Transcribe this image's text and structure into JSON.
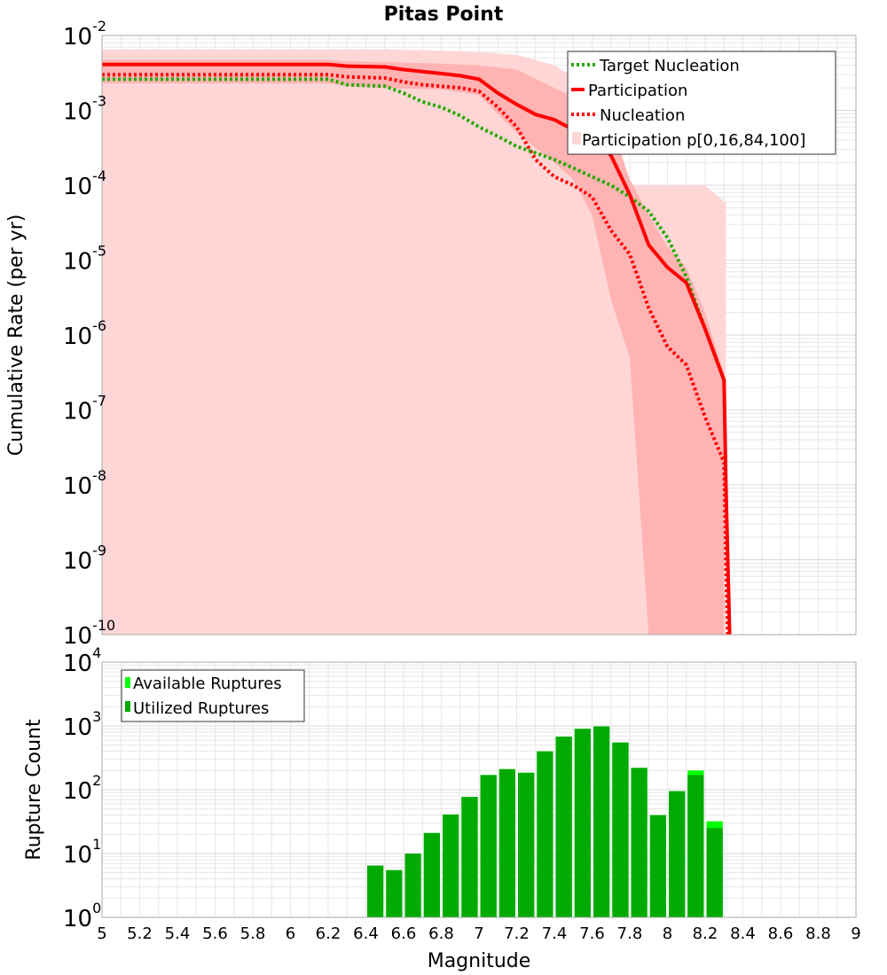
{
  "title": "Pitas Point",
  "colors": {
    "participation": "#ff0000",
    "nucleation": "#ff0000",
    "target": "#22aa00",
    "band_outer": "#ffd6d6",
    "band_inner": "#ffb3b3",
    "bar_available": "#00ff00",
    "bar_utilized": "#00aa00",
    "grid": "#e6e6e6"
  },
  "chart_data": [
    {
      "type": "line",
      "title": "Pitas Point",
      "xlabel": "",
      "ylabel": "Cumulative Rate (per yr)",
      "yscale": "log",
      "xlim": [
        5,
        9
      ],
      "ylim": [
        1e-10,
        0.01
      ],
      "ytick_bases": [
        "10",
        "10",
        "10",
        "10",
        "10",
        "10",
        "10",
        "10",
        "10"
      ],
      "ytick_exps": [
        "-2",
        "-3",
        "-4",
        "-5",
        "-6",
        "-7",
        "-8",
        "-9",
        "-10"
      ],
      "legend_placement": "top-right",
      "legend": [
        "Target Nucleation",
        "Participation",
        "Nucleation",
        "Participation p[0,16,84,100]"
      ],
      "series": [
        {
          "name": "Target Nucleation",
          "style": "dotted",
          "x": [
            5.0,
            5.1,
            6.2,
            6.3,
            6.5,
            6.6,
            6.7,
            6.8,
            6.9,
            7.0,
            7.1,
            7.2,
            7.3,
            7.4,
            7.5,
            7.6,
            7.7,
            7.8,
            7.9,
            8.0,
            8.1,
            8.2,
            8.3
          ],
          "y": [
            0.0026,
            0.0026,
            0.0026,
            0.0022,
            0.0021,
            0.0017,
            0.0013,
            0.0011,
            0.00085,
            0.0006,
            0.00045,
            0.00033,
            0.00027,
            0.00022,
            0.00017,
            0.00013,
            0.0001,
            7e-05,
            4.5e-05,
            2e-05,
            6e-06,
            1.2e-06,
            2.5e-07
          ]
        },
        {
          "name": "Participation",
          "style": "solid",
          "x": [
            5.0,
            5.1,
            6.2,
            6.3,
            6.5,
            6.6,
            6.7,
            6.8,
            6.9,
            7.0,
            7.1,
            7.2,
            7.3,
            7.4,
            7.5,
            7.6,
            7.7,
            7.8,
            7.9,
            8.0,
            8.1,
            8.2,
            8.3,
            8.31,
            8.32,
            8.33
          ],
          "y": [
            0.0041,
            0.0041,
            0.0041,
            0.0039,
            0.0038,
            0.0035,
            0.0033,
            0.0031,
            0.0029,
            0.0026,
            0.0017,
            0.0012,
            0.00088,
            0.00075,
            0.00055,
            0.00045,
            0.00025,
            7.5e-05,
            1.6e-05,
            8e-06,
            5e-06,
            1.2e-06,
            2.5e-07,
            1e-08,
            1e-09,
            1e-10
          ]
        },
        {
          "name": "Nucleation",
          "style": "dotted",
          "x": [
            5.0,
            5.1,
            6.2,
            6.3,
            6.5,
            6.6,
            6.7,
            6.8,
            6.9,
            7.0,
            7.1,
            7.2,
            7.3,
            7.4,
            7.5,
            7.6,
            7.7,
            7.8,
            7.9,
            8.0,
            8.1,
            8.2,
            8.3,
            8.31,
            8.32
          ],
          "y": [
            0.003,
            0.003,
            0.003,
            0.0028,
            0.0027,
            0.0024,
            0.0022,
            0.0021,
            0.002,
            0.0018,
            0.0011,
            0.0006,
            0.00022,
            0.00013,
            0.0001,
            7e-05,
            2.5e-05,
            1.2e-05,
            2.3e-06,
            7e-07,
            4e-07,
            8e-08,
            2e-08,
            1e-09,
            1e-10
          ]
        }
      ],
      "bands": [
        {
          "name": "Participation p[0,100]",
          "x": [
            5.0,
            6.2,
            6.5,
            6.8,
            7.0,
            7.2,
            7.4,
            7.6,
            7.7,
            7.8,
            8.0,
            8.1,
            8.2,
            8.3,
            8.31
          ],
          "upper": [
            0.0065,
            0.0065,
            0.0065,
            0.0063,
            0.006,
            0.0055,
            0.004,
            0.002,
            0.0011,
            0.0001,
            0.0001,
            0.0001,
            0.0001,
            6e-05,
            6e-05
          ],
          "lower": [
            1e-10,
            1e-10,
            1e-10,
            1e-10,
            1e-10,
            1e-10,
            1e-10,
            1e-10,
            1e-10,
            1e-10,
            1e-10,
            1e-10,
            1e-10,
            1e-10,
            1e-10
          ]
        },
        {
          "name": "Participation p[16,84]",
          "x": [
            5.0,
            6.2,
            6.3,
            6.5,
            6.8,
            7.0,
            7.2,
            7.4,
            7.5,
            7.6,
            7.7,
            7.8,
            7.9,
            8.0,
            8.1,
            8.2,
            8.3
          ],
          "upper": [
            0.0047,
            0.0047,
            0.0045,
            0.0044,
            0.0042,
            0.004,
            0.0035,
            0.002,
            0.0015,
            0.001,
            0.0006,
            0.00012,
            4e-05,
            1.5e-05,
            8e-06,
            2e-06,
            3e-07
          ],
          "lower": [
            0.0023,
            0.0023,
            0.0021,
            0.002,
            0.0019,
            0.0016,
            0.0005,
            0.0002,
            0.00012,
            4e-05,
            3e-06,
            5e-07,
            1e-10,
            1e-10,
            1e-10,
            1e-10,
            1e-10
          ]
        }
      ]
    },
    {
      "type": "bar",
      "xlabel": "Magnitude",
      "ylabel": "Rupture Count",
      "yscale": "log",
      "xlim": [
        5,
        9
      ],
      "ylim": [
        1,
        10000
      ],
      "xtick_labels": [
        "5",
        "5.2",
        "5.4",
        "5.6",
        "5.8",
        "6",
        "6.2",
        "6.4",
        "6.6",
        "6.8",
        "7",
        "7.2",
        "7.4",
        "7.6",
        "7.8",
        "8",
        "8.2",
        "8.4",
        "8.6",
        "8.8",
        "9"
      ],
      "ytick_bases": [
        "10",
        "10",
        "10",
        "10",
        "10"
      ],
      "ytick_exps": [
        "4",
        "3",
        "2",
        "1",
        "0"
      ],
      "legend_placement": "top-left",
      "legend": [
        "Available Ruptures",
        "Utilized Ruptures"
      ],
      "bin_width": 0.1,
      "categories": [
        6.45,
        6.55,
        6.65,
        6.75,
        6.85,
        6.95,
        7.05,
        7.15,
        7.25,
        7.35,
        7.45,
        7.55,
        7.65,
        7.75,
        7.85,
        7.95,
        8.05,
        8.15,
        8.25
      ],
      "series": [
        {
          "name": "Available Ruptures",
          "values": [
            6.5,
            5.5,
            10,
            21,
            41,
            77,
            170,
            210,
            185,
            400,
            680,
            900,
            980,
            550,
            220,
            40,
            95,
            200,
            32
          ]
        },
        {
          "name": "Utilized Ruptures",
          "values": [
            6.5,
            5.5,
            10,
            21,
            41,
            77,
            170,
            210,
            185,
            400,
            680,
            900,
            980,
            550,
            220,
            40,
            95,
            170,
            25
          ]
        }
      ]
    }
  ]
}
